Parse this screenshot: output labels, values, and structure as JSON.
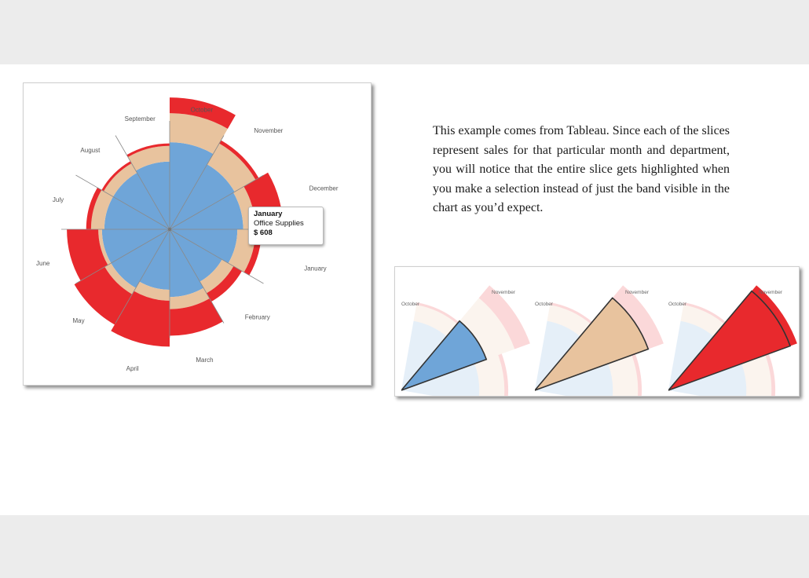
{
  "text": {
    "paragraph": "This example comes from Tableau. Since each of the slices represent sales for that particular month and department, you will notice that the entire slice gets highlighted when you make a selection instead of just the band visible in the chart as you’d expect."
  },
  "tooltip": {
    "month": "January",
    "department": "Office Supplies",
    "value": "$ 608"
  },
  "colors": {
    "office_supplies": "#6fa5d8",
    "furniture": "#e8c39e",
    "technology": "#e8292d",
    "spoke": "#8a8a8a"
  },
  "chart_data": [
    {
      "type": "radial-stacked-bar",
      "categories": [
        "January",
        "February",
        "March",
        "April",
        "May",
        "June",
        "July",
        "August",
        "September",
        "October",
        "November",
        "December"
      ],
      "series": [
        {
          "key": "office_supplies",
          "values": [
            608,
            560,
            500,
            560,
            500,
            560,
            560,
            540,
            540,
            560,
            720,
            620
          ]
        },
        {
          "key": "furniture",
          "values": [
            100,
            150,
            110,
            100,
            90,
            60,
            30,
            110,
            90,
            130,
            240,
            200
          ]
        },
        {
          "key": "technology",
          "values": [
            230,
            50,
            80,
            220,
            380,
            290,
            260,
            40,
            20,
            20,
            130,
            30
          ]
        }
      ]
    },
    {
      "type": "radial-stacked-bar",
      "panels": [
        {
          "selected": "Office Supplies"
        },
        {
          "selected": "Furniture"
        },
        {
          "selected": "Technology"
        }
      ],
      "categories": [
        "October",
        "November"
      ]
    }
  ]
}
